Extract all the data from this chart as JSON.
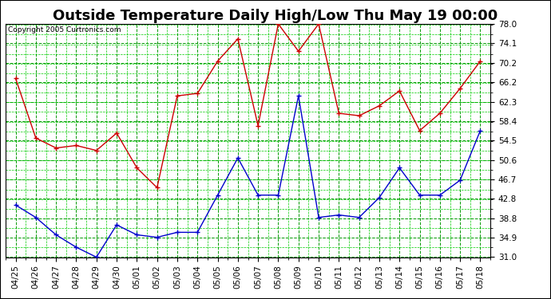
{
  "title": "Outside Temperature Daily High/Low Thu May 19 00:00",
  "copyright": "Copyright 2005 Curtronics.com",
  "labels": [
    "04/25",
    "04/26",
    "04/27",
    "04/28",
    "04/29",
    "04/30",
    "05/01",
    "05/02",
    "05/03",
    "05/04",
    "05/05",
    "05/06",
    "05/07",
    "05/08",
    "05/09",
    "05/10",
    "05/11",
    "05/12",
    "05/13",
    "05/14",
    "05/15",
    "05/16",
    "05/17",
    "05/18"
  ],
  "high_temps": [
    67.0,
    55.0,
    53.0,
    53.5,
    52.5,
    56.0,
    49.0,
    45.0,
    63.5,
    64.0,
    70.5,
    75.0,
    57.5,
    78.0,
    72.5,
    78.0,
    60.0,
    59.5,
    61.5,
    64.5,
    56.5,
    60.0,
    65.0,
    70.5
  ],
  "low_temps": [
    41.5,
    39.0,
    35.5,
    33.0,
    31.0,
    37.5,
    35.5,
    35.0,
    36.0,
    36.0,
    43.5,
    51.0,
    43.5,
    43.5,
    63.5,
    39.0,
    39.5,
    39.0,
    43.0,
    49.0,
    43.5,
    43.5,
    46.5,
    56.5
  ],
  "high_color": "#cc0000",
  "low_color": "#0000cc",
  "bg_color": "#ffffff",
  "plot_bg_color": "#ffffff",
  "grid_color_major": "#009900",
  "grid_color_minor": "#00cc00",
  "ylim_min": 31.0,
  "ylim_max": 78.0,
  "yticks": [
    31.0,
    34.9,
    38.8,
    42.8,
    46.7,
    50.6,
    54.5,
    58.4,
    62.3,
    66.2,
    70.2,
    74.1,
    78.0
  ],
  "title_fontsize": 13,
  "axis_fontsize": 7.5,
  "copyright_fontsize": 6.5
}
